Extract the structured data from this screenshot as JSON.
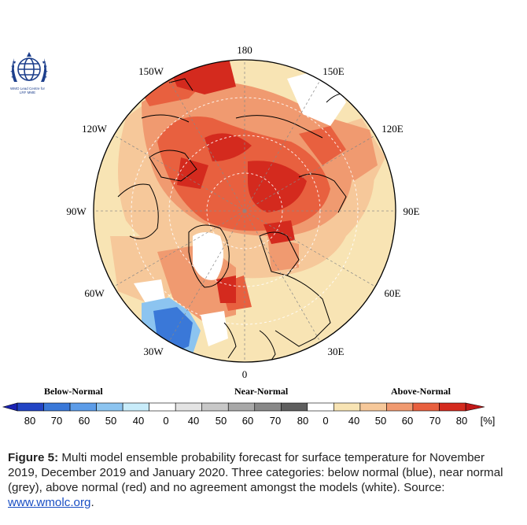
{
  "logo": {
    "icon": "wmo-emblem-icon",
    "text_line1": "WMO Lead Centre for",
    "text_line2": "LRF MME",
    "color": "#1d3f8c"
  },
  "map": {
    "projection": "north-polar-stereographic",
    "longitude_labels": {
      "top": "180",
      "top_left": "150W",
      "top_right": "150E",
      "upper_left": "120W",
      "upper_right": "120E",
      "left": "90W",
      "right": "90E",
      "lower_left": "60W",
      "lower_right": "60E",
      "bottom_left": "30W",
      "bottom_right": "30E",
      "bottom": "0"
    },
    "colors": {
      "ocean_land_base": "#f8e4b4",
      "light_orange": "#f6c89a",
      "orange": "#f09a70",
      "red_orange": "#e8603f",
      "red": "#d42a1e",
      "white": "#ffffff",
      "blue": "#3a78d8",
      "light_blue": "#8cc4f0",
      "grey": "#d4d4d4"
    }
  },
  "legend": {
    "below_label": "Below-Normal",
    "near_label": "Near-Normal",
    "above_label": "Above-Normal",
    "ticks": [
      "80",
      "70",
      "60",
      "50",
      "40",
      "0",
      "40",
      "50",
      "60",
      "70",
      "80",
      "0",
      "40",
      "50",
      "60",
      "70",
      "80"
    ],
    "unit": "[%]",
    "below_colors": [
      "#2244c4",
      "#3a78d8",
      "#5c9ce8",
      "#8cc4f0",
      "#c8ecfa"
    ],
    "near_colors": [
      "#ffffff",
      "#e4e4e4",
      "#c8c8c8",
      "#a8a8a8",
      "#888888",
      "#5e5e5e"
    ],
    "above_colors": [
      "#ffffff",
      "#f8e4b4",
      "#f6c89a",
      "#f09a70",
      "#e8603f",
      "#d42a1e"
    ],
    "end_left_color": "#1a22b4",
    "end_right_color": "#c01818"
  },
  "caption": {
    "figure_label": "Figure 5:",
    "text": " Multi model ensemble probability forecast for surface temperature for November 2019, December 2019 and January 2020. Three categories: below normal (blue), near normal (grey), above normal (red) and no agreement amongst the models (white). Source: ",
    "link_text": "www.wmolc.org",
    "end": "."
  }
}
